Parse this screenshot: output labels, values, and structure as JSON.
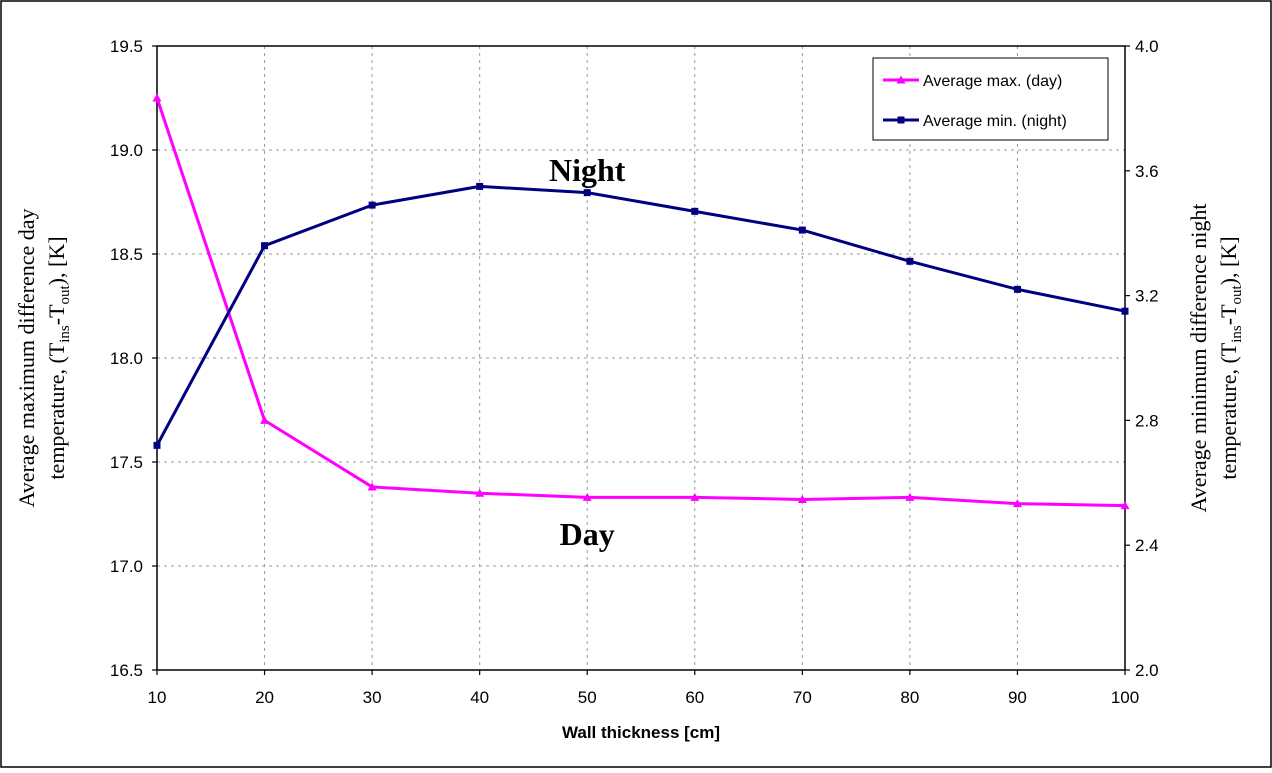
{
  "chart_data": {
    "type": "line",
    "title": "",
    "xlabel": "Wall thickness [cm]",
    "ylabel_left_lines": [
      "Average maximum difference day",
      "temperature,  (T",
      "ins",
      "-T",
      "out",
      "), [K]"
    ],
    "ylabel_right_lines": [
      "Average minimum difference night",
      "temperature, (T",
      "ins",
      "-T",
      "out",
      "), [K]"
    ],
    "x": [
      10,
      20,
      30,
      40,
      50,
      60,
      70,
      80,
      90,
      100
    ],
    "xlim": [
      10,
      100
    ],
    "ylim_left": [
      16.5,
      19.5
    ],
    "ylim_right": [
      2.0,
      4.0
    ],
    "yticks_left": [
      "16.5",
      "17.0",
      "17.5",
      "18.0",
      "18.5",
      "19.0",
      "19.5"
    ],
    "yticks_right": [
      "2.0",
      "2.4",
      "2.8",
      "3.2",
      "3.6",
      "4.0"
    ],
    "xticks": [
      "10",
      "20",
      "30",
      "40",
      "50",
      "60",
      "70",
      "80",
      "90",
      "100"
    ],
    "grid": true,
    "legend_position": "top-right",
    "series": [
      {
        "name": "Average max. (day)",
        "axis": "left",
        "color": "#ff00ff",
        "marker": "triangle",
        "values": [
          19.25,
          17.7,
          17.38,
          17.35,
          17.33,
          17.33,
          17.32,
          17.33,
          17.3,
          17.29
        ]
      },
      {
        "name": "Average min. (night)",
        "axis": "right",
        "color": "#000080",
        "marker": "square",
        "values": [
          2.72,
          3.36,
          3.49,
          3.55,
          3.53,
          3.47,
          3.41,
          3.31,
          3.22,
          3.15
        ]
      }
    ],
    "annotations": [
      {
        "text": "Night",
        "x": 50,
        "y_left": 18.85
      },
      {
        "text": "Day",
        "x": 50,
        "y_left": 17.1
      }
    ]
  }
}
